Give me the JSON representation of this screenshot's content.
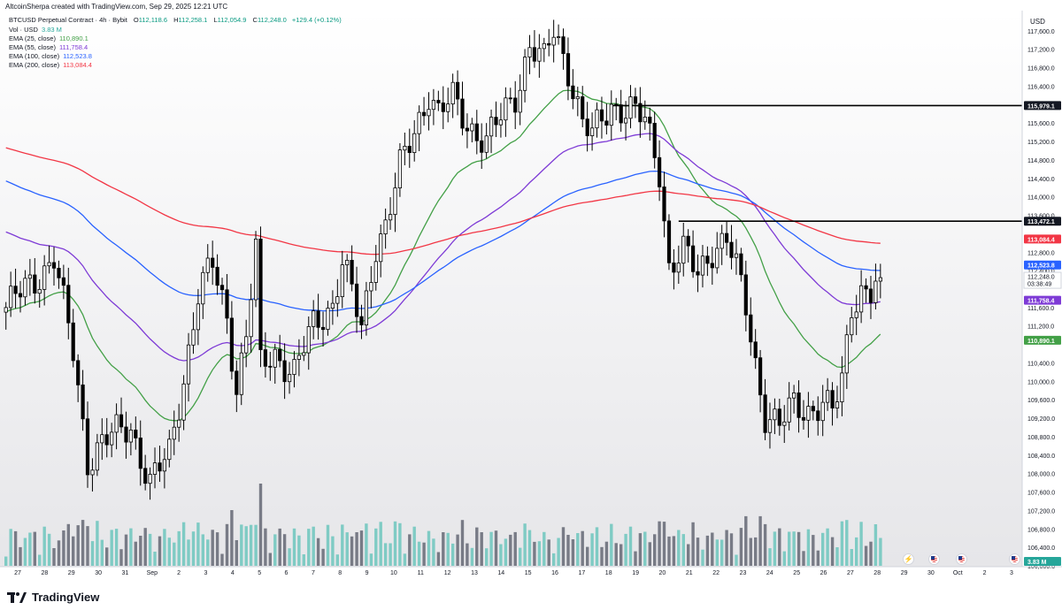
{
  "header": {
    "attribution": "AltcoinSherpa created with TradingView.com, Sep 29, 2025 12:21 UTC",
    "symbol": "BTCUSD Perpetual Contract · 4h · Bybit",
    "open_label": "O",
    "open": "112,118.6",
    "high_label": "H",
    "high": "112,258.1",
    "low_label": "L",
    "low": "112,054.9",
    "close_label": "C",
    "close": "112,248.0",
    "change": "+129.4 (+0.12%)"
  },
  "legend": [
    {
      "label": "Vol · USD",
      "value": "3.83 M",
      "color": "#26a69a"
    },
    {
      "label": "EMA (25, close)",
      "value": "110,890.1",
      "color": "#43a047"
    },
    {
      "label": "EMA (55, close)",
      "value": "111,758.4",
      "color": "#7e3bd6"
    },
    {
      "label": "EMA (100, close)",
      "value": "112,523.8",
      "color": "#2962ff"
    },
    {
      "label": "EMA (200, close)",
      "value": "113,084.4",
      "color": "#f23645"
    }
  ],
  "axis": {
    "currency": "USD",
    "price_ticks": [
      "117,600.0",
      "117,200.0",
      "116,800.0",
      "116,400.0",
      "116,000.0",
      "115,600.0",
      "115,200.0",
      "114,800.0",
      "114,400.0",
      "114,000.0",
      "113,600.0",
      "112,800.0",
      "112,400.0",
      "111,600.0",
      "111,200.0",
      "110,400.0",
      "110,000.0",
      "109,600.0",
      "109,200.0",
      "108,800.0",
      "108,400.0",
      "108,000.0",
      "107,600.0",
      "107,200.0",
      "106,800.0",
      "106,400.0",
      "106,000.0"
    ],
    "date_ticks": [
      "27",
      "28",
      "29",
      "30",
      "31",
      "Sep",
      "2",
      "3",
      "4",
      "5",
      "6",
      "7",
      "8",
      "9",
      "10",
      "11",
      "12",
      "13",
      "14",
      "15",
      "16",
      "17",
      "18",
      "19",
      "20",
      "21",
      "22",
      "23",
      "24",
      "25",
      "26",
      "27",
      "28",
      "29",
      "30",
      "Oct",
      "2",
      "3"
    ]
  },
  "price_tags": [
    {
      "value": "115,979.1",
      "bg": "#131722",
      "fg": "#ffffff"
    },
    {
      "value": "113,472.1",
      "bg": "#131722",
      "fg": "#ffffff"
    },
    {
      "value": "113,084.4",
      "bg": "#f23645",
      "fg": "#ffffff"
    },
    {
      "value": "112,523.8",
      "bg": "#2962ff",
      "fg": "#ffffff"
    },
    {
      "value": "112,248.0",
      "bg": "#ffffff",
      "fg": "#131722",
      "countdown": "03:38:49"
    },
    {
      "value": "111,758.4",
      "bg": "#7e3bd6",
      "fg": "#ffffff"
    },
    {
      "value": "110,890.1",
      "bg": "#43a047",
      "fg": "#ffffff"
    },
    {
      "value": "3.83 M",
      "bg": "#26a69a",
      "fg": "#ffffff"
    }
  ],
  "brand": {
    "name": "TradingView"
  },
  "chart_data": {
    "type": "candlestick",
    "timeframe": "4h",
    "ylim": [
      106000,
      118000
    ],
    "up_color": "#ffffff",
    "down_color": "#000000",
    "candle_count": 198,
    "ohlc_anchors_note": "",
    "close_path": [
      [
        0,
        111600
      ],
      [
        6,
        112200
      ],
      [
        10,
        112700
      ],
      [
        14,
        110600
      ],
      [
        17,
        108300
      ],
      [
        20,
        108700
      ],
      [
        26,
        109000
      ],
      [
        30,
        107800
      ],
      [
        34,
        108400
      ],
      [
        37,
        110100
      ],
      [
        40,
        111900
      ],
      [
        43,
        112500
      ],
      [
        46,
        111400
      ],
      [
        48,
        109900
      ],
      [
        50,
        111000
      ],
      [
        52,
        112800
      ],
      [
        53,
        110300
      ],
      [
        56,
        110600
      ],
      [
        60,
        110200
      ],
      [
        64,
        111200
      ],
      [
        68,
        111700
      ],
      [
        70,
        112600
      ],
      [
        72,
        111900
      ],
      [
        74,
        111100
      ],
      [
        77,
        113000
      ],
      [
        79,
        113400
      ],
      [
        82,
        114600
      ],
      [
        85,
        115400
      ],
      [
        88,
        116300
      ],
      [
        90,
        115800
      ],
      [
        93,
        116100
      ],
      [
        96,
        115600
      ],
      [
        100,
        115200
      ],
      [
        103,
        115700
      ],
      [
        106,
        116200
      ],
      [
        109,
        117300
      ],
      [
        112,
        116900
      ],
      [
        114,
        117600
      ],
      [
        117,
        116800
      ],
      [
        120,
        115600
      ],
      [
        122,
        115300
      ],
      [
        126,
        116000
      ],
      [
        130,
        115900
      ],
      [
        133,
        115600
      ],
      [
        136,
        114600
      ],
      [
        138,
        112500
      ],
      [
        141,
        112800
      ],
      [
        144,
        112300
      ],
      [
        147,
        112900
      ],
      [
        150,
        113100
      ],
      [
        152,
        112400
      ],
      [
        154,
        111600
      ],
      [
        156,
        110400
      ],
      [
        158,
        109300
      ],
      [
        161,
        109000
      ],
      [
        164,
        109500
      ],
      [
        167,
        109400
      ],
      [
        170,
        109500
      ],
      [
        172,
        109300
      ],
      [
        174,
        110000
      ],
      [
        176,
        111700
      ],
      [
        178,
        112000
      ],
      [
        180,
        111900
      ],
      [
        182,
        112248
      ]
    ],
    "volume_max_note": "",
    "ema": [
      {
        "name": "EMA (25, close)",
        "period": 25,
        "color": "#43a047",
        "last": 110890.1
      },
      {
        "name": "EMA (55, close)",
        "period": 55,
        "color": "#7e3bd6",
        "last": 111758.4
      },
      {
        "name": "EMA (100, close)",
        "period": 100,
        "color": "#2962ff",
        "last": 112523.8
      },
      {
        "name": "EMA (200, close)",
        "period": 200,
        "color": "#f23645",
        "last": 113084.4
      }
    ],
    "ema_seed": {
      "EMA (25, close)": 111500,
      "EMA (55, close)": 113300,
      "EMA (100, close)": 114400,
      "EMA (200, close)": 115100
    },
    "horizontal_lines": [
      {
        "value": 115979.1,
        "start_index": 126,
        "color": "#000000"
      },
      {
        "value": 113472.1,
        "start_index": 140,
        "color": "#000000"
      }
    ],
    "volume_color_up": "#7fcbc4",
    "volume_color_down": "#787b86"
  }
}
